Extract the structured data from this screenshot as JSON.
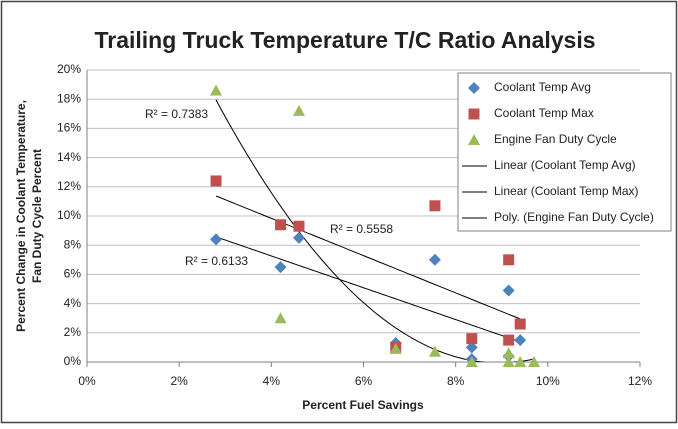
{
  "chart_data": {
    "type": "scatter",
    "title": "Trailing Truck Temperature T/C Ratio Analysis",
    "xlabel": "Percent Fuel Savings",
    "ylabel": [
      "Percent Change in Coolant Temperature,",
      "Fan Duty Cycle Percent"
    ],
    "xlim": [
      0,
      12
    ],
    "xticks": [
      {
        "value": 0,
        "label": "0%"
      },
      {
        "value": 2,
        "label": "2%"
      },
      {
        "value": 4,
        "label": "4%"
      },
      {
        "value": 6,
        "label": "6%"
      },
      {
        "value": 8,
        "label": "8%"
      },
      {
        "value": 10,
        "label": "10%"
      },
      {
        "value": 12,
        "label": "12%"
      }
    ],
    "ylim": [
      0,
      20
    ],
    "yticks": [
      {
        "value": 0,
        "label": "0%"
      },
      {
        "value": 2,
        "label": "2%"
      },
      {
        "value": 4,
        "label": "4%"
      },
      {
        "value": 6,
        "label": "6%"
      },
      {
        "value": 8,
        "label": "8%"
      },
      {
        "value": 10,
        "label": "10%"
      },
      {
        "value": 12,
        "label": "12%"
      },
      {
        "value": 14,
        "label": "14%"
      },
      {
        "value": 16,
        "label": "16%"
      },
      {
        "value": 18,
        "label": "18%"
      },
      {
        "value": 20,
        "label": "20%"
      }
    ],
    "grid": true,
    "legend": "top-right",
    "series": [
      {
        "name": "Coolant Temp Avg",
        "color": "#4f81bd",
        "marker": "diamond",
        "x": [
          2.8,
          4.2,
          4.6,
          6.7,
          7.55,
          8.35,
          8.35,
          9.15,
          9.15,
          9.4
        ],
        "values": [
          8.4,
          6.5,
          8.5,
          1.3,
          7.0,
          1.0,
          0.2,
          4.9,
          0.4,
          1.5
        ],
        "trendline": {
          "name": "Linear (Coolant Temp Avg)",
          "order": 1
        }
      },
      {
        "name": "Coolant Temp Max",
        "color": "#c0504d",
        "marker": "square",
        "x": [
          2.8,
          4.2,
          4.6,
          6.7,
          7.55,
          8.35,
          9.15,
          9.15,
          9.4
        ],
        "values": [
          12.4,
          9.4,
          9.3,
          1.0,
          10.7,
          1.6,
          7.0,
          1.5,
          2.6
        ],
        "trendline": {
          "name": "Linear (Coolant Temp Max)",
          "order": 1
        }
      },
      {
        "name": "Engine Fan Duty Cycle",
        "color": "#9bbb59",
        "marker": "triangle",
        "x": [
          2.8,
          4.2,
          4.6,
          6.7,
          7.55,
          8.35,
          9.15,
          9.15,
          9.4,
          9.7
        ],
        "values": [
          18.6,
          3.0,
          17.2,
          0.9,
          0.7,
          0.0,
          0.6,
          0.0,
          0.0,
          0.0
        ],
        "trendline": {
          "name": "Poly. (Engine Fan Duty Cycle)",
          "order": 2
        }
      }
    ],
    "annotations": [
      "R² = 0.7383",
      "R² = 0.5558",
      "R² = 0.6133"
    ]
  }
}
